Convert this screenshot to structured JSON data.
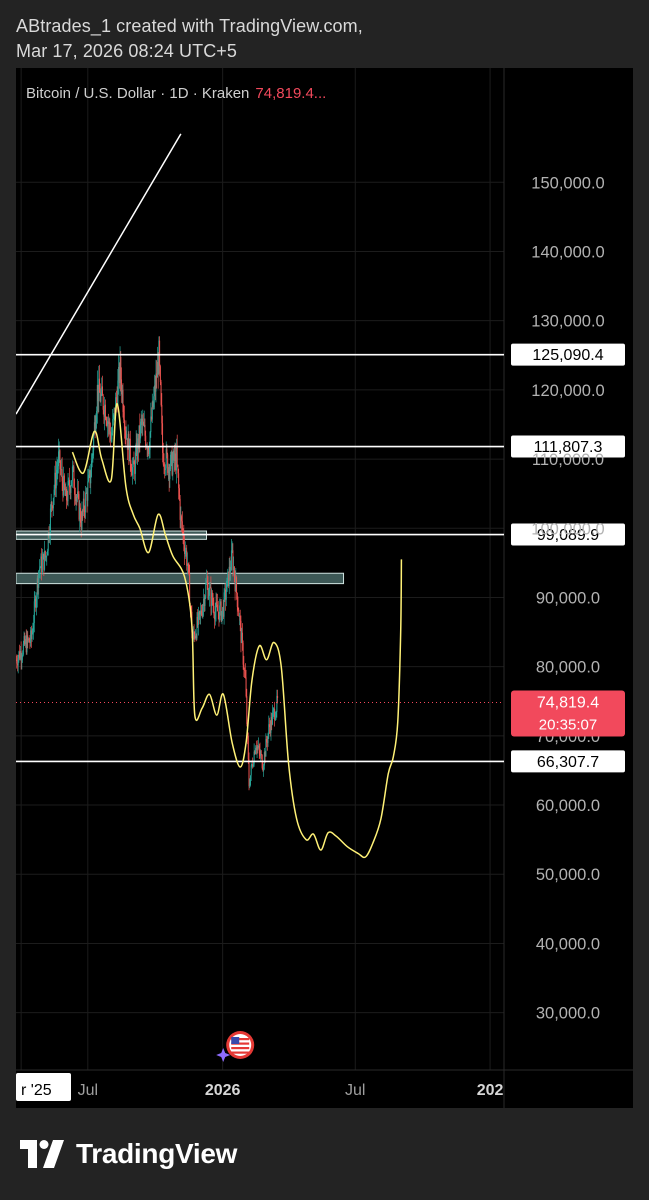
{
  "header": {
    "line1": "ABtrades_1 created with TradingView.com,",
    "line2": "Mar 17, 2026 08:24 UTC+5"
  },
  "legend": {
    "symbol": "Bitcoin / U.S. Dollar · 1D · Kraken",
    "price": "74,819.4..."
  },
  "footer": {
    "brand": "TradingView",
    "logo_icon": "tradingview-logo-icon"
  },
  "colors": {
    "background": "#232323",
    "panel": "#000000",
    "candle_up": "#26a69a",
    "candle_down": "#ef5350",
    "projection": "#fff176",
    "level_line": "#ffffff",
    "current_price": "#f2495c",
    "zone_fill": "#3d5856"
  },
  "chart_data": {
    "type": "line",
    "title": "Bitcoin / U.S. Dollar · 1D · Kraken",
    "xlabel": "",
    "ylabel": "",
    "y_ticks": [
      150000,
      140000,
      130000,
      120000,
      110000,
      100000,
      90000,
      80000,
      70000,
      60000,
      50000,
      40000,
      30000
    ],
    "y_tick_labels": [
      "150,000.0",
      "140,000.0",
      "130,000.0",
      "120,000.0",
      "110,000.0",
      "100,000.0",
      "90,000.0",
      "80,000.0",
      "70,000.0",
      "60,000.0",
      "50,000.0",
      "40,000.0",
      "30,000.0"
    ],
    "ylim": [
      22000,
      159000
    ],
    "x_ticks": [
      {
        "label": "r '25",
        "date": "2025-04-01",
        "boxed": true
      },
      {
        "label": "Jul",
        "date": "2025-07-01",
        "boxed": false
      },
      {
        "label": "2026",
        "date": "2026-01-01",
        "boxed": false,
        "bold": true
      },
      {
        "label": "Jul",
        "date": "2026-07-01",
        "boxed": false
      },
      {
        "label": "202",
        "date": "2027-01-01",
        "boxed": false,
        "bold": true
      }
    ],
    "xlim": [
      "2025-03-25",
      "2027-01-20"
    ],
    "levels": [
      {
        "value": 125090.4,
        "label": "125,090.4"
      },
      {
        "value": 111807.3,
        "label": "111,807.3"
      },
      {
        "value": 99089.9,
        "label": "99,089.9"
      },
      {
        "value": 66307.7,
        "label": "66,307.7"
      }
    ],
    "current_price": {
      "value": 74819.4,
      "label": "74,819.4",
      "countdown": "20:35:07"
    },
    "zones": [
      {
        "from_date": "2025-03-25",
        "to_date": "2025-12-10",
        "low": 98400,
        "high": 99600
      },
      {
        "from_date": "2025-03-25",
        "to_date": "2026-06-15",
        "low": 92000,
        "high": 93500
      }
    ],
    "trendline": [
      {
        "date": "2025-03-25",
        "value": 116500
      },
      {
        "date": "2025-11-05",
        "value": 157000
      }
    ],
    "price_series": [
      {
        "date": "2025-03-25",
        "value": 81000
      },
      {
        "date": "2025-04-05",
        "value": 83000
      },
      {
        "date": "2025-04-15",
        "value": 84000
      },
      {
        "date": "2025-04-25",
        "value": 94000
      },
      {
        "date": "2025-05-05",
        "value": 96000
      },
      {
        "date": "2025-05-12",
        "value": 103000
      },
      {
        "date": "2025-05-22",
        "value": 110000
      },
      {
        "date": "2025-06-01",
        "value": 104000
      },
      {
        "date": "2025-06-10",
        "value": 108000
      },
      {
        "date": "2025-06-22",
        "value": 101000
      },
      {
        "date": "2025-07-05",
        "value": 108000
      },
      {
        "date": "2025-07-14",
        "value": 120000
      },
      {
        "date": "2025-07-25",
        "value": 117500
      },
      {
        "date": "2025-08-02",
        "value": 113000
      },
      {
        "date": "2025-08-14",
        "value": 123000
      },
      {
        "date": "2025-08-22",
        "value": 114000
      },
      {
        "date": "2025-09-01",
        "value": 108000
      },
      {
        "date": "2025-09-12",
        "value": 115000
      },
      {
        "date": "2025-09-22",
        "value": 112000
      },
      {
        "date": "2025-10-06",
        "value": 125000
      },
      {
        "date": "2025-10-11",
        "value": 111000
      },
      {
        "date": "2025-10-20",
        "value": 109000
      },
      {
        "date": "2025-10-30",
        "value": 110000
      },
      {
        "date": "2025-11-05",
        "value": 101000
      },
      {
        "date": "2025-11-14",
        "value": 95000
      },
      {
        "date": "2025-11-21",
        "value": 84000
      },
      {
        "date": "2025-12-01",
        "value": 87000
      },
      {
        "date": "2025-12-10",
        "value": 92000
      },
      {
        "date": "2025-12-22",
        "value": 88000
      },
      {
        "date": "2026-01-01",
        "value": 88000
      },
      {
        "date": "2026-01-14",
        "value": 96000
      },
      {
        "date": "2026-01-22",
        "value": 89000
      },
      {
        "date": "2026-02-01",
        "value": 78000
      },
      {
        "date": "2026-02-06",
        "value": 63000
      },
      {
        "date": "2026-02-15",
        "value": 69000
      },
      {
        "date": "2026-02-25",
        "value": 66000
      },
      {
        "date": "2026-03-05",
        "value": 71000
      },
      {
        "date": "2026-03-17",
        "value": 74819
      }
    ],
    "projection": [
      {
        "date": "2025-06-10",
        "value": 111000
      },
      {
        "date": "2025-06-25",
        "value": 108000
      },
      {
        "date": "2025-07-10",
        "value": 114000
      },
      {
        "date": "2025-07-20",
        "value": 110000
      },
      {
        "date": "2025-08-02",
        "value": 107000
      },
      {
        "date": "2025-08-10",
        "value": 118000
      },
      {
        "date": "2025-08-22",
        "value": 106000
      },
      {
        "date": "2025-09-01",
        "value": 102000
      },
      {
        "date": "2025-09-10",
        "value": 100000
      },
      {
        "date": "2025-09-22",
        "value": 96500
      },
      {
        "date": "2025-10-05",
        "value": 102000
      },
      {
        "date": "2025-10-15",
        "value": 99000
      },
      {
        "date": "2025-10-25",
        "value": 96000
      },
      {
        "date": "2025-11-10",
        "value": 93000
      },
      {
        "date": "2025-11-20",
        "value": 86000
      },
      {
        "date": "2025-11-24",
        "value": 73000
      },
      {
        "date": "2025-12-04",
        "value": 74000
      },
      {
        "date": "2025-12-14",
        "value": 76000
      },
      {
        "date": "2025-12-24",
        "value": 73000
      },
      {
        "date": "2026-01-02",
        "value": 76000
      },
      {
        "date": "2026-01-14",
        "value": 69000
      },
      {
        "date": "2026-01-25",
        "value": 65500
      },
      {
        "date": "2026-02-02",
        "value": 69000
      },
      {
        "date": "2026-02-10",
        "value": 78000
      },
      {
        "date": "2026-02-20",
        "value": 83000
      },
      {
        "date": "2026-03-02",
        "value": 81000
      },
      {
        "date": "2026-03-12",
        "value": 83500
      },
      {
        "date": "2026-03-22",
        "value": 80000
      },
      {
        "date": "2026-04-01",
        "value": 66000
      },
      {
        "date": "2026-04-12",
        "value": 58000
      },
      {
        "date": "2026-04-25",
        "value": 55000
      },
      {
        "date": "2026-05-05",
        "value": 55800
      },
      {
        "date": "2026-05-15",
        "value": 53500
      },
      {
        "date": "2026-05-25",
        "value": 56000
      },
      {
        "date": "2026-06-05",
        "value": 55500
      },
      {
        "date": "2026-06-20",
        "value": 54000
      },
      {
        "date": "2026-07-05",
        "value": 53000
      },
      {
        "date": "2026-07-15",
        "value": 52500
      },
      {
        "date": "2026-07-25",
        "value": 54500
      },
      {
        "date": "2026-08-05",
        "value": 58000
      },
      {
        "date": "2026-08-15",
        "value": 64500
      },
      {
        "date": "2026-08-22",
        "value": 67000
      },
      {
        "date": "2026-08-28",
        "value": 72000
      },
      {
        "date": "2026-09-01",
        "value": 85000
      },
      {
        "date": "2026-09-02",
        "value": 95500
      }
    ],
    "event_icon": "us-flag-event-icon"
  }
}
